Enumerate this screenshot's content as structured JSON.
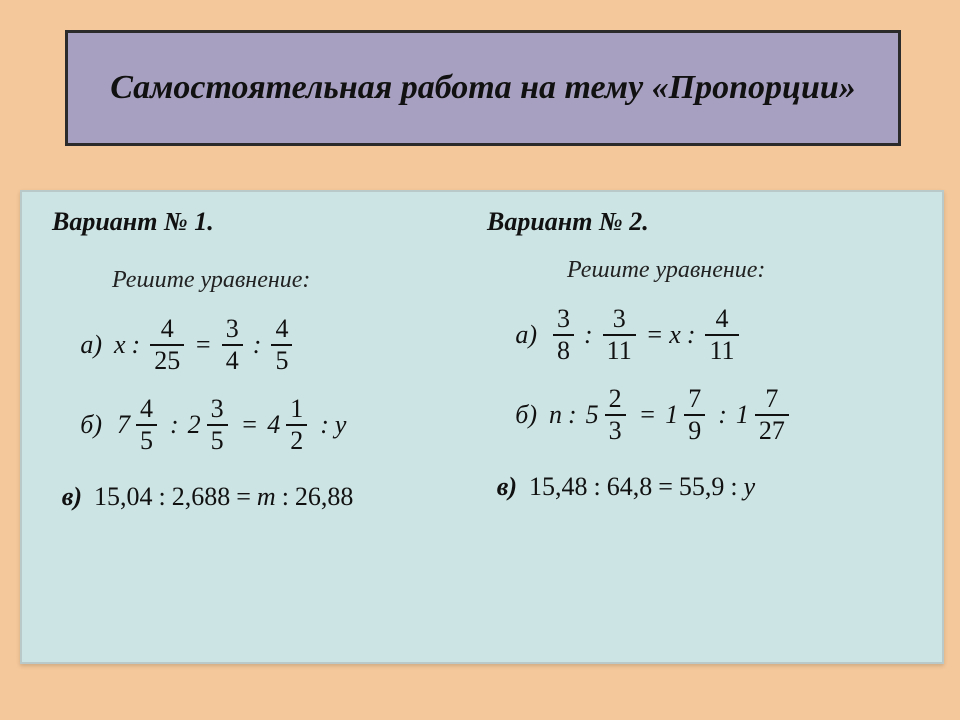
{
  "colors": {
    "page_bg": "#f4c89a",
    "title_bg": "#a8a0c0",
    "title_border": "#2b2b2b",
    "content_bg": "#cde4e4",
    "text": "#111111"
  },
  "typography": {
    "family": "Times New Roman",
    "title_fontsize_pt": 26,
    "variant_fontsize_pt": 20,
    "body_fontsize_pt": 20
  },
  "title": "Самостоятельная работа на тему «Пропорции»",
  "variant1": {
    "title": "Вариант №  1.",
    "instr": "Решите  уравнение:",
    "a": {
      "label": "а)",
      "lhs_var": "х",
      "f1": {
        "num": "4",
        "den": "25"
      },
      "f2": {
        "num": "3",
        "den": "4"
      },
      "f3": {
        "num": "4",
        "den": "5"
      }
    },
    "b": {
      "label": "б)",
      "m1": {
        "whole": "7",
        "num": "4",
        "den": "5"
      },
      "m2": {
        "whole": "2",
        "num": "3",
        "den": "5"
      },
      "m3": {
        "whole": "4",
        "num": "1",
        "den": "2"
      },
      "rhs_var": "у"
    },
    "c": {
      "label": "в)",
      "d1": "15,04",
      "d2": "2,688",
      "var": "т",
      "d3": "26,88"
    }
  },
  "variant2": {
    "title": "Вариант №  2.",
    "instr": "Решите  уравнение:",
    "a": {
      "label": "а)",
      "f1": {
        "num": "3",
        "den": "8"
      },
      "f2": {
        "num": "3",
        "den": "11"
      },
      "mid_var": "х",
      "f3": {
        "num": "4",
        "den": "11"
      }
    },
    "b": {
      "label": "б)",
      "lhs_var": "п",
      "m1": {
        "whole": "5",
        "num": "2",
        "den": "3"
      },
      "m2": {
        "whole": "1",
        "num": "7",
        "den": "9"
      },
      "m3": {
        "whole": "1",
        "num": "7",
        "den": "27"
      }
    },
    "c": {
      "label": "в)",
      "d1": "15,48",
      "d2": "64,8",
      "d3": "55,9",
      "var": "у"
    }
  },
  "ops": {
    "colon": ":",
    "eq": "="
  }
}
